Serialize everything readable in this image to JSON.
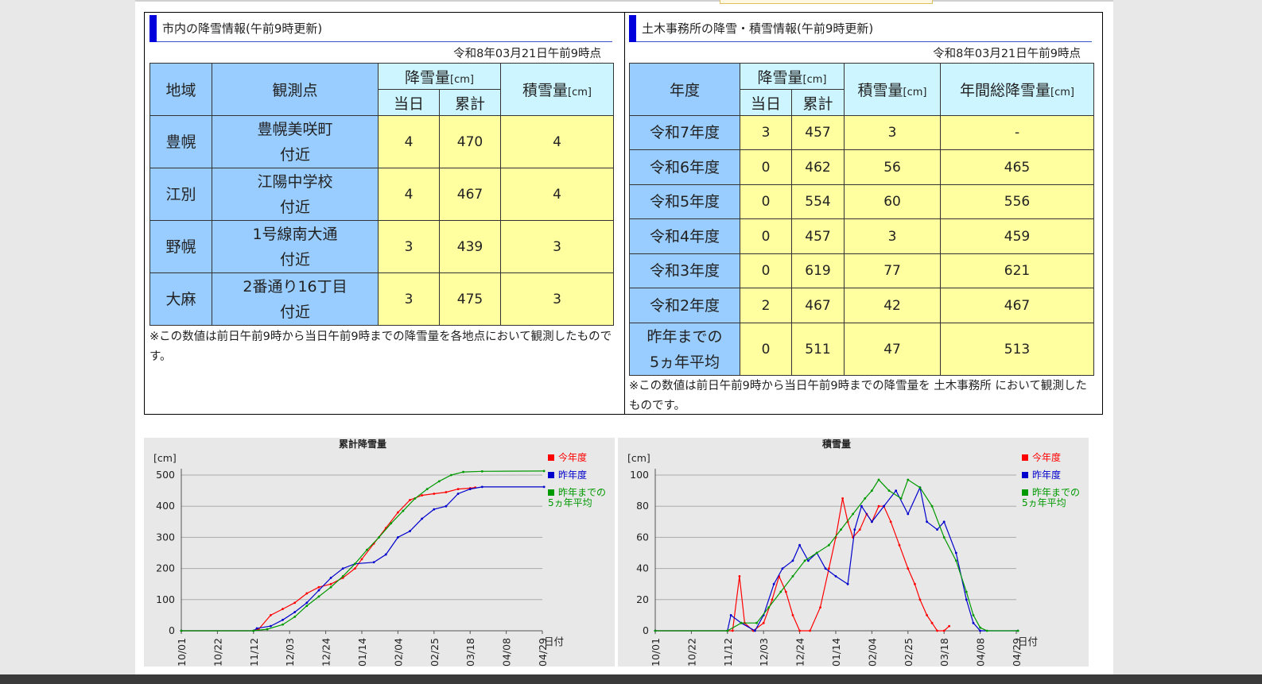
{
  "left_panel": {
    "title": "市内の降雪情報(午前9時更新)",
    "date": "令和8年03月21日午前9時点",
    "headers": {
      "region": "地域",
      "station": "観測点",
      "snowfall": "降雪量",
      "snowfall_unit": "[cm]",
      "today": "当日",
      "cumulative": "累計",
      "depth": "積雪量",
      "depth_unit": "[cm]"
    },
    "rows": [
      {
        "region": "豊幌",
        "station1": "豊幌美咲町",
        "station2": "付近",
        "today": "4",
        "cumulative": "470",
        "depth": "4"
      },
      {
        "region": "江別",
        "station1": "江陽中学校",
        "station2": "付近",
        "today": "4",
        "cumulative": "467",
        "depth": "4"
      },
      {
        "region": "野幌",
        "station1": "1号線南大通",
        "station2": "付近",
        "today": "3",
        "cumulative": "439",
        "depth": "3"
      },
      {
        "region": "大麻",
        "station1": "2番通り16丁目",
        "station2": "付近",
        "today": "3",
        "cumulative": "475",
        "depth": "3"
      }
    ],
    "note": "※この数値は前日午前9時から当日午前9時までの降雪量を各地点において観測したものです。"
  },
  "right_panel": {
    "title": "土木事務所の降雪・積雪情報(午前9時更新)",
    "date": "令和8年03月21日午前9時点",
    "headers": {
      "year": "年度",
      "snowfall": "降雪量",
      "snowfall_unit": "[cm]",
      "today": "当日",
      "cumulative": "累計",
      "depth": "積雪量",
      "depth_unit": "[cm]",
      "annual": "年間総降雪量",
      "annual_unit": "[cm]"
    },
    "rows": [
      {
        "year": "令和7年度",
        "today": "3",
        "cumulative": "457",
        "depth": "3",
        "annual": "-"
      },
      {
        "year": "令和6年度",
        "today": "0",
        "cumulative": "462",
        "depth": "56",
        "annual": "465"
      },
      {
        "year": "令和5年度",
        "today": "0",
        "cumulative": "554",
        "depth": "60",
        "annual": "556"
      },
      {
        "year": "令和4年度",
        "today": "0",
        "cumulative": "457",
        "depth": "3",
        "annual": "459"
      },
      {
        "year": "令和3年度",
        "today": "0",
        "cumulative": "619",
        "depth": "77",
        "annual": "621"
      },
      {
        "year": "令和2年度",
        "today": "2",
        "cumulative": "467",
        "depth": "42",
        "annual": "467"
      }
    ],
    "avg_row": {
      "year1": "昨年までの",
      "year2": "5ヵ年平均",
      "today": "0",
      "cumulative": "511",
      "depth": "47",
      "annual": "513"
    },
    "note": "※この数値は前日午前9時から当日午前9時までの降雪量を 土木事務所 において観測したものです。"
  },
  "colors": {
    "current": "#ff0000",
    "last_year": "#0000cc",
    "avg5": "#009900",
    "header_blue": "#99ccff",
    "header_cyan": "#ccf5ff",
    "cell_yellow": "#ffffa0",
    "title_bar": "#0000dd"
  },
  "chart_data": [
    {
      "type": "line",
      "title": "累計降雪量",
      "ylabel": "[cm]",
      "xlabel": "日付",
      "ylim": [
        0,
        500
      ],
      "yticks": [
        "0",
        "100",
        "200",
        "300",
        "400",
        "500"
      ],
      "xticks": [
        "10/01",
        "10/22",
        "11/12",
        "12/03",
        "12/24",
        "01/14",
        "02/04",
        "02/25",
        "03/18",
        "04/08",
        "04/29"
      ],
      "grid": true,
      "legend_position": "right",
      "series": [
        {
          "name": "今年度",
          "color": "#ff0000",
          "points": [
            [
              "10/01",
              0
            ],
            [
              "11/12",
              0
            ],
            [
              "11/15",
              5
            ],
            [
              "11/22",
              50
            ],
            [
              "11/29",
              70
            ],
            [
              "12/06",
              90
            ],
            [
              "12/13",
              120
            ],
            [
              "12/20",
              140
            ],
            [
              "12/27",
              150
            ],
            [
              "01/03",
              170
            ],
            [
              "01/10",
              200
            ],
            [
              "01/14",
              230
            ],
            [
              "01/21",
              280
            ],
            [
              "01/28",
              330
            ],
            [
              "02/04",
              380
            ],
            [
              "02/11",
              420
            ],
            [
              "02/18",
              435
            ],
            [
              "02/25",
              440
            ],
            [
              "03/04",
              445
            ],
            [
              "03/11",
              455
            ],
            [
              "03/18",
              458
            ],
            [
              "03/21",
              460
            ]
          ]
        },
        {
          "name": "昨年度",
          "color": "#0000cc",
          "points": [
            [
              "10/01",
              0
            ],
            [
              "11/12",
              0
            ],
            [
              "11/14",
              8
            ],
            [
              "11/22",
              15
            ],
            [
              "11/29",
              35
            ],
            [
              "12/06",
              60
            ],
            [
              "12/13",
              90
            ],
            [
              "12/20",
              130
            ],
            [
              "12/27",
              170
            ],
            [
              "01/03",
              200
            ],
            [
              "01/10",
              215
            ],
            [
              "01/21",
              220
            ],
            [
              "01/28",
              245
            ],
            [
              "02/04",
              300
            ],
            [
              "02/11",
              320
            ],
            [
              "02/18",
              360
            ],
            [
              "02/25",
              390
            ],
            [
              "03/04",
              400
            ],
            [
              "03/11",
              440
            ],
            [
              "03/18",
              455
            ],
            [
              "03/25",
              462
            ],
            [
              "04/30",
              462
            ]
          ]
        },
        {
          "name": "昨年までの5ヵ年平均",
          "color": "#009900",
          "points": [
            [
              "10/01",
              0
            ],
            [
              "11/12",
              0
            ],
            [
              "11/20",
              5
            ],
            [
              "11/29",
              20
            ],
            [
              "12/06",
              45
            ],
            [
              "12/13",
              80
            ],
            [
              "12/20",
              110
            ],
            [
              "12/27",
              140
            ],
            [
              "01/03",
              175
            ],
            [
              "01/10",
              215
            ],
            [
              "01/17",
              260
            ],
            [
              "01/24",
              300
            ],
            [
              "01/31",
              345
            ],
            [
              "02/07",
              385
            ],
            [
              "02/14",
              425
            ],
            [
              "02/21",
              455
            ],
            [
              "02/28",
              480
            ],
            [
              "03/07",
              500
            ],
            [
              "03/14",
              510
            ],
            [
              "03/25",
              512
            ],
            [
              "04/30",
              513
            ]
          ]
        }
      ]
    },
    {
      "type": "line",
      "title": "積雪量",
      "ylabel": "[cm]",
      "xlabel": "日付",
      "ylim": [
        0,
        100
      ],
      "yticks": [
        "0",
        "20",
        "40",
        "60",
        "80",
        "100"
      ],
      "xticks": [
        "10/01",
        "10/22",
        "11/12",
        "12/03",
        "12/24",
        "01/14",
        "02/04",
        "02/25",
        "03/18",
        "04/08",
        "04/29"
      ],
      "grid": true,
      "legend_position": "right",
      "series": [
        {
          "name": "今年度",
          "color": "#ff0000",
          "points": [
            [
              "10/01",
              0
            ],
            [
              "11/15",
              0
            ],
            [
              "11/19",
              35
            ],
            [
              "11/22",
              5
            ],
            [
              "11/27",
              0
            ],
            [
              "12/03",
              5
            ],
            [
              "12/08",
              20
            ],
            [
              "12/12",
              35
            ],
            [
              "12/16",
              25
            ],
            [
              "12/20",
              10
            ],
            [
              "12/24",
              0
            ],
            [
              "12/30",
              0
            ],
            [
              "01/05",
              15
            ],
            [
              "01/10",
              40
            ],
            [
              "01/14",
              60
            ],
            [
              "01/18",
              85
            ],
            [
              "01/21",
              70
            ],
            [
              "01/24",
              60
            ],
            [
              "01/28",
              65
            ],
            [
              "02/01",
              75
            ],
            [
              "02/04",
              70
            ],
            [
              "02/08",
              80
            ],
            [
              "02/11",
              80
            ],
            [
              "02/15",
              70
            ],
            [
              "02/20",
              55
            ],
            [
              "02/25",
              40
            ],
            [
              "03/01",
              30
            ],
            [
              "03/04",
              20
            ],
            [
              "03/08",
              10
            ],
            [
              "03/11",
              5
            ],
            [
              "03/14",
              0
            ],
            [
              "03/18",
              0
            ],
            [
              "03/21",
              3
            ]
          ]
        },
        {
          "name": "昨年度",
          "color": "#0000cc",
          "points": [
            [
              "10/01",
              0
            ],
            [
              "11/12",
              0
            ],
            [
              "11/14",
              10
            ],
            [
              "11/20",
              5
            ],
            [
              "11/28",
              0
            ],
            [
              "12/03",
              10
            ],
            [
              "12/09",
              30
            ],
            [
              "12/14",
              40
            ],
            [
              "12/20",
              45
            ],
            [
              "12/24",
              55
            ],
            [
              "12/29",
              45
            ],
            [
              "01/03",
              50
            ],
            [
              "01/08",
              40
            ],
            [
              "01/14",
              35
            ],
            [
              "01/21",
              30
            ],
            [
              "01/25",
              65
            ],
            [
              "01/29",
              80
            ],
            [
              "02/04",
              70
            ],
            [
              "02/11",
              80
            ],
            [
              "02/18",
              90
            ],
            [
              "02/25",
              75
            ],
            [
              "03/04",
              92
            ],
            [
              "03/08",
              70
            ],
            [
              "03/14",
              65
            ],
            [
              "03/18",
              70
            ],
            [
              "03/25",
              50
            ],
            [
              "03/31",
              20
            ],
            [
              "04/04",
              5
            ],
            [
              "04/08",
              0
            ],
            [
              "04/30",
              0
            ]
          ]
        },
        {
          "name": "昨年までの5ヵ年平均",
          "color": "#009900",
          "points": [
            [
              "10/01",
              0
            ],
            [
              "11/12",
              0
            ],
            [
              "11/20",
              5
            ],
            [
              "11/29",
              5
            ],
            [
              "12/06",
              15
            ],
            [
              "12/13",
              25
            ],
            [
              "12/20",
              35
            ],
            [
              "12/27",
              45
            ],
            [
              "01/03",
              50
            ],
            [
              "01/10",
              55
            ],
            [
              "01/17",
              65
            ],
            [
              "01/24",
              75
            ],
            [
              "01/31",
              85
            ],
            [
              "02/04",
              90
            ],
            [
              "02/08",
              97
            ],
            [
              "02/14",
              90
            ],
            [
              "02/21",
              85
            ],
            [
              "02/25",
              97
            ],
            [
              "03/04",
              92
            ],
            [
              "03/11",
              80
            ],
            [
              "03/18",
              60
            ],
            [
              "03/25",
              45
            ],
            [
              "03/31",
              25
            ],
            [
              "04/04",
              10
            ],
            [
              "04/08",
              2
            ],
            [
              "04/12",
              0
            ],
            [
              "04/30",
              0
            ]
          ]
        }
      ]
    }
  ]
}
